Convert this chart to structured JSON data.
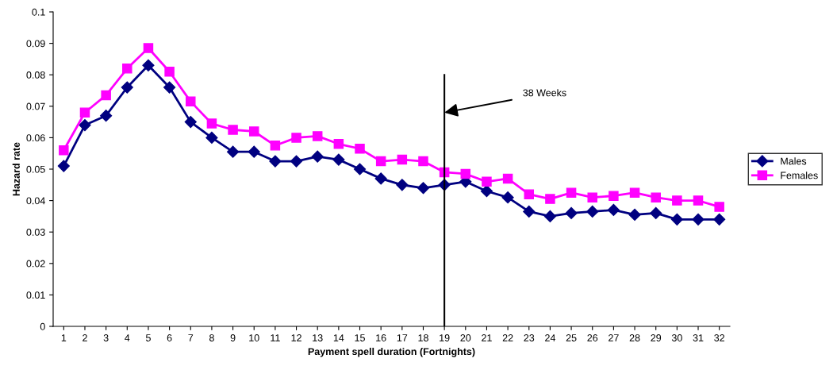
{
  "chart_data": {
    "type": "line",
    "xlabel": "Payment spell duration (Fortnights)",
    "ylabel": "Hazard rate",
    "categories": [
      "1",
      "2",
      "3",
      "4",
      "5",
      "6",
      "7",
      "8",
      "9",
      "10",
      "11",
      "12",
      "13",
      "14",
      "15",
      "16",
      "17",
      "18",
      "19",
      "20",
      "21",
      "22",
      "23",
      "24",
      "25",
      "26",
      "27",
      "28",
      "29",
      "30",
      "31",
      "32"
    ],
    "series": [
      {
        "name": "Males",
        "color": "#000080",
        "marker": "diamond",
        "values": [
          0.051,
          0.064,
          0.067,
          0.076,
          0.083,
          0.076,
          0.065,
          0.06,
          0.0555,
          0.0555,
          0.0525,
          0.0525,
          0.054,
          0.053,
          0.05,
          0.047,
          0.045,
          0.044,
          0.045,
          0.046,
          0.043,
          0.041,
          0.0365,
          0.035,
          0.036,
          0.0365,
          0.037,
          0.0355,
          0.036,
          0.034,
          0.034,
          0.034
        ]
      },
      {
        "name": "Females",
        "color": "#ff00ff",
        "marker": "square",
        "values": [
          0.056,
          0.068,
          0.0735,
          0.082,
          0.0885,
          0.081,
          0.0715,
          0.0645,
          0.0625,
          0.062,
          0.0575,
          0.06,
          0.0605,
          0.058,
          0.0565,
          0.0525,
          0.053,
          0.0525,
          0.049,
          0.0485,
          0.046,
          0.047,
          0.042,
          0.0405,
          0.0425,
          0.041,
          0.0415,
          0.0425,
          0.041,
          0.04,
          0.04,
          0.038
        ]
      }
    ],
    "ylim": [
      0,
      0.1
    ],
    "yticks": [
      0,
      0.01,
      0.02,
      0.03,
      0.04,
      0.05,
      0.06,
      0.07,
      0.08,
      0.09,
      0.1
    ],
    "ref_lines": [
      {
        "axis": "x",
        "value": "19",
        "color": "#000000"
      }
    ],
    "annotations": [
      {
        "text": "38 Weeks",
        "x": "19",
        "y": 0.068
      }
    ],
    "grid": false,
    "legend": "right",
    "line_style": "solid"
  }
}
